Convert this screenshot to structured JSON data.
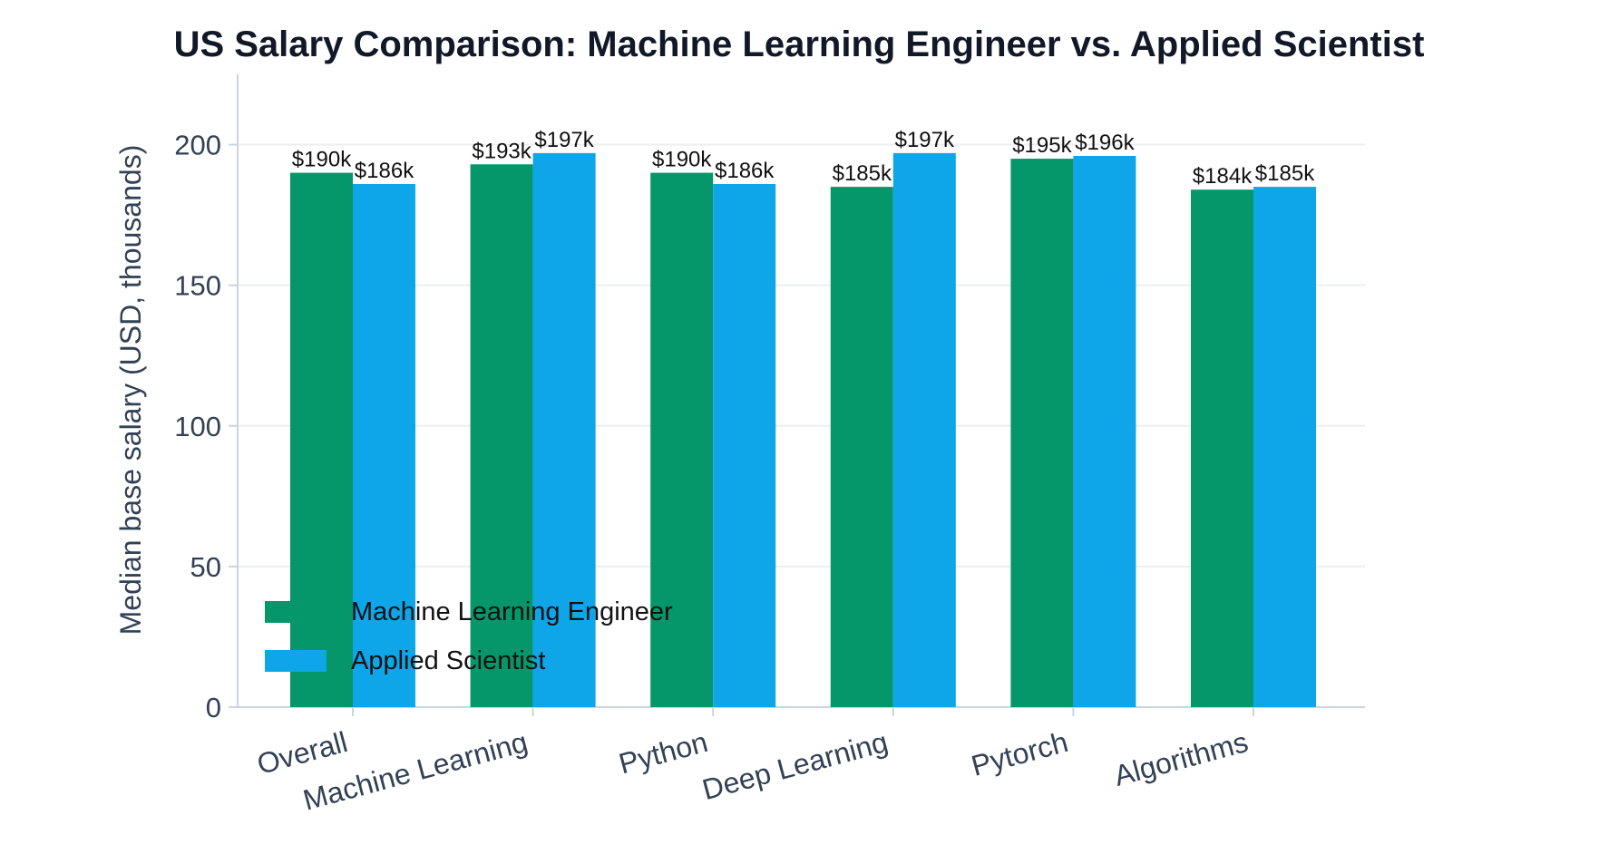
{
  "chart_data": {
    "type": "bar",
    "title": "US Salary Comparison: Machine Learning Engineer vs. Applied Scientist",
    "xlabel": "",
    "ylabel": "Median base salary (USD, thousands)",
    "ylim": [
      0,
      225
    ],
    "yticks": [
      0,
      50,
      100,
      150,
      200
    ],
    "grid": "y",
    "legend_position": "lower-left",
    "categories": [
      "Overall",
      "Machine Learning",
      "Python",
      "Deep Learning",
      "Pytorch",
      "Algorithms"
    ],
    "series": [
      {
        "name": "Machine Learning Engineer",
        "color": "#059669",
        "values": [
          190,
          193,
          190,
          185,
          195,
          184
        ],
        "labels": [
          "$190k",
          "$193k",
          "$190k",
          "$185k",
          "$195k",
          "$184k"
        ]
      },
      {
        "name": "Applied Scientist",
        "color": "#0ea5e9",
        "values": [
          186,
          197,
          186,
          197,
          196,
          185
        ],
        "labels": [
          "$186k",
          "$197k",
          "$186k",
          "$197k",
          "$196k",
          "$185k"
        ]
      }
    ]
  }
}
